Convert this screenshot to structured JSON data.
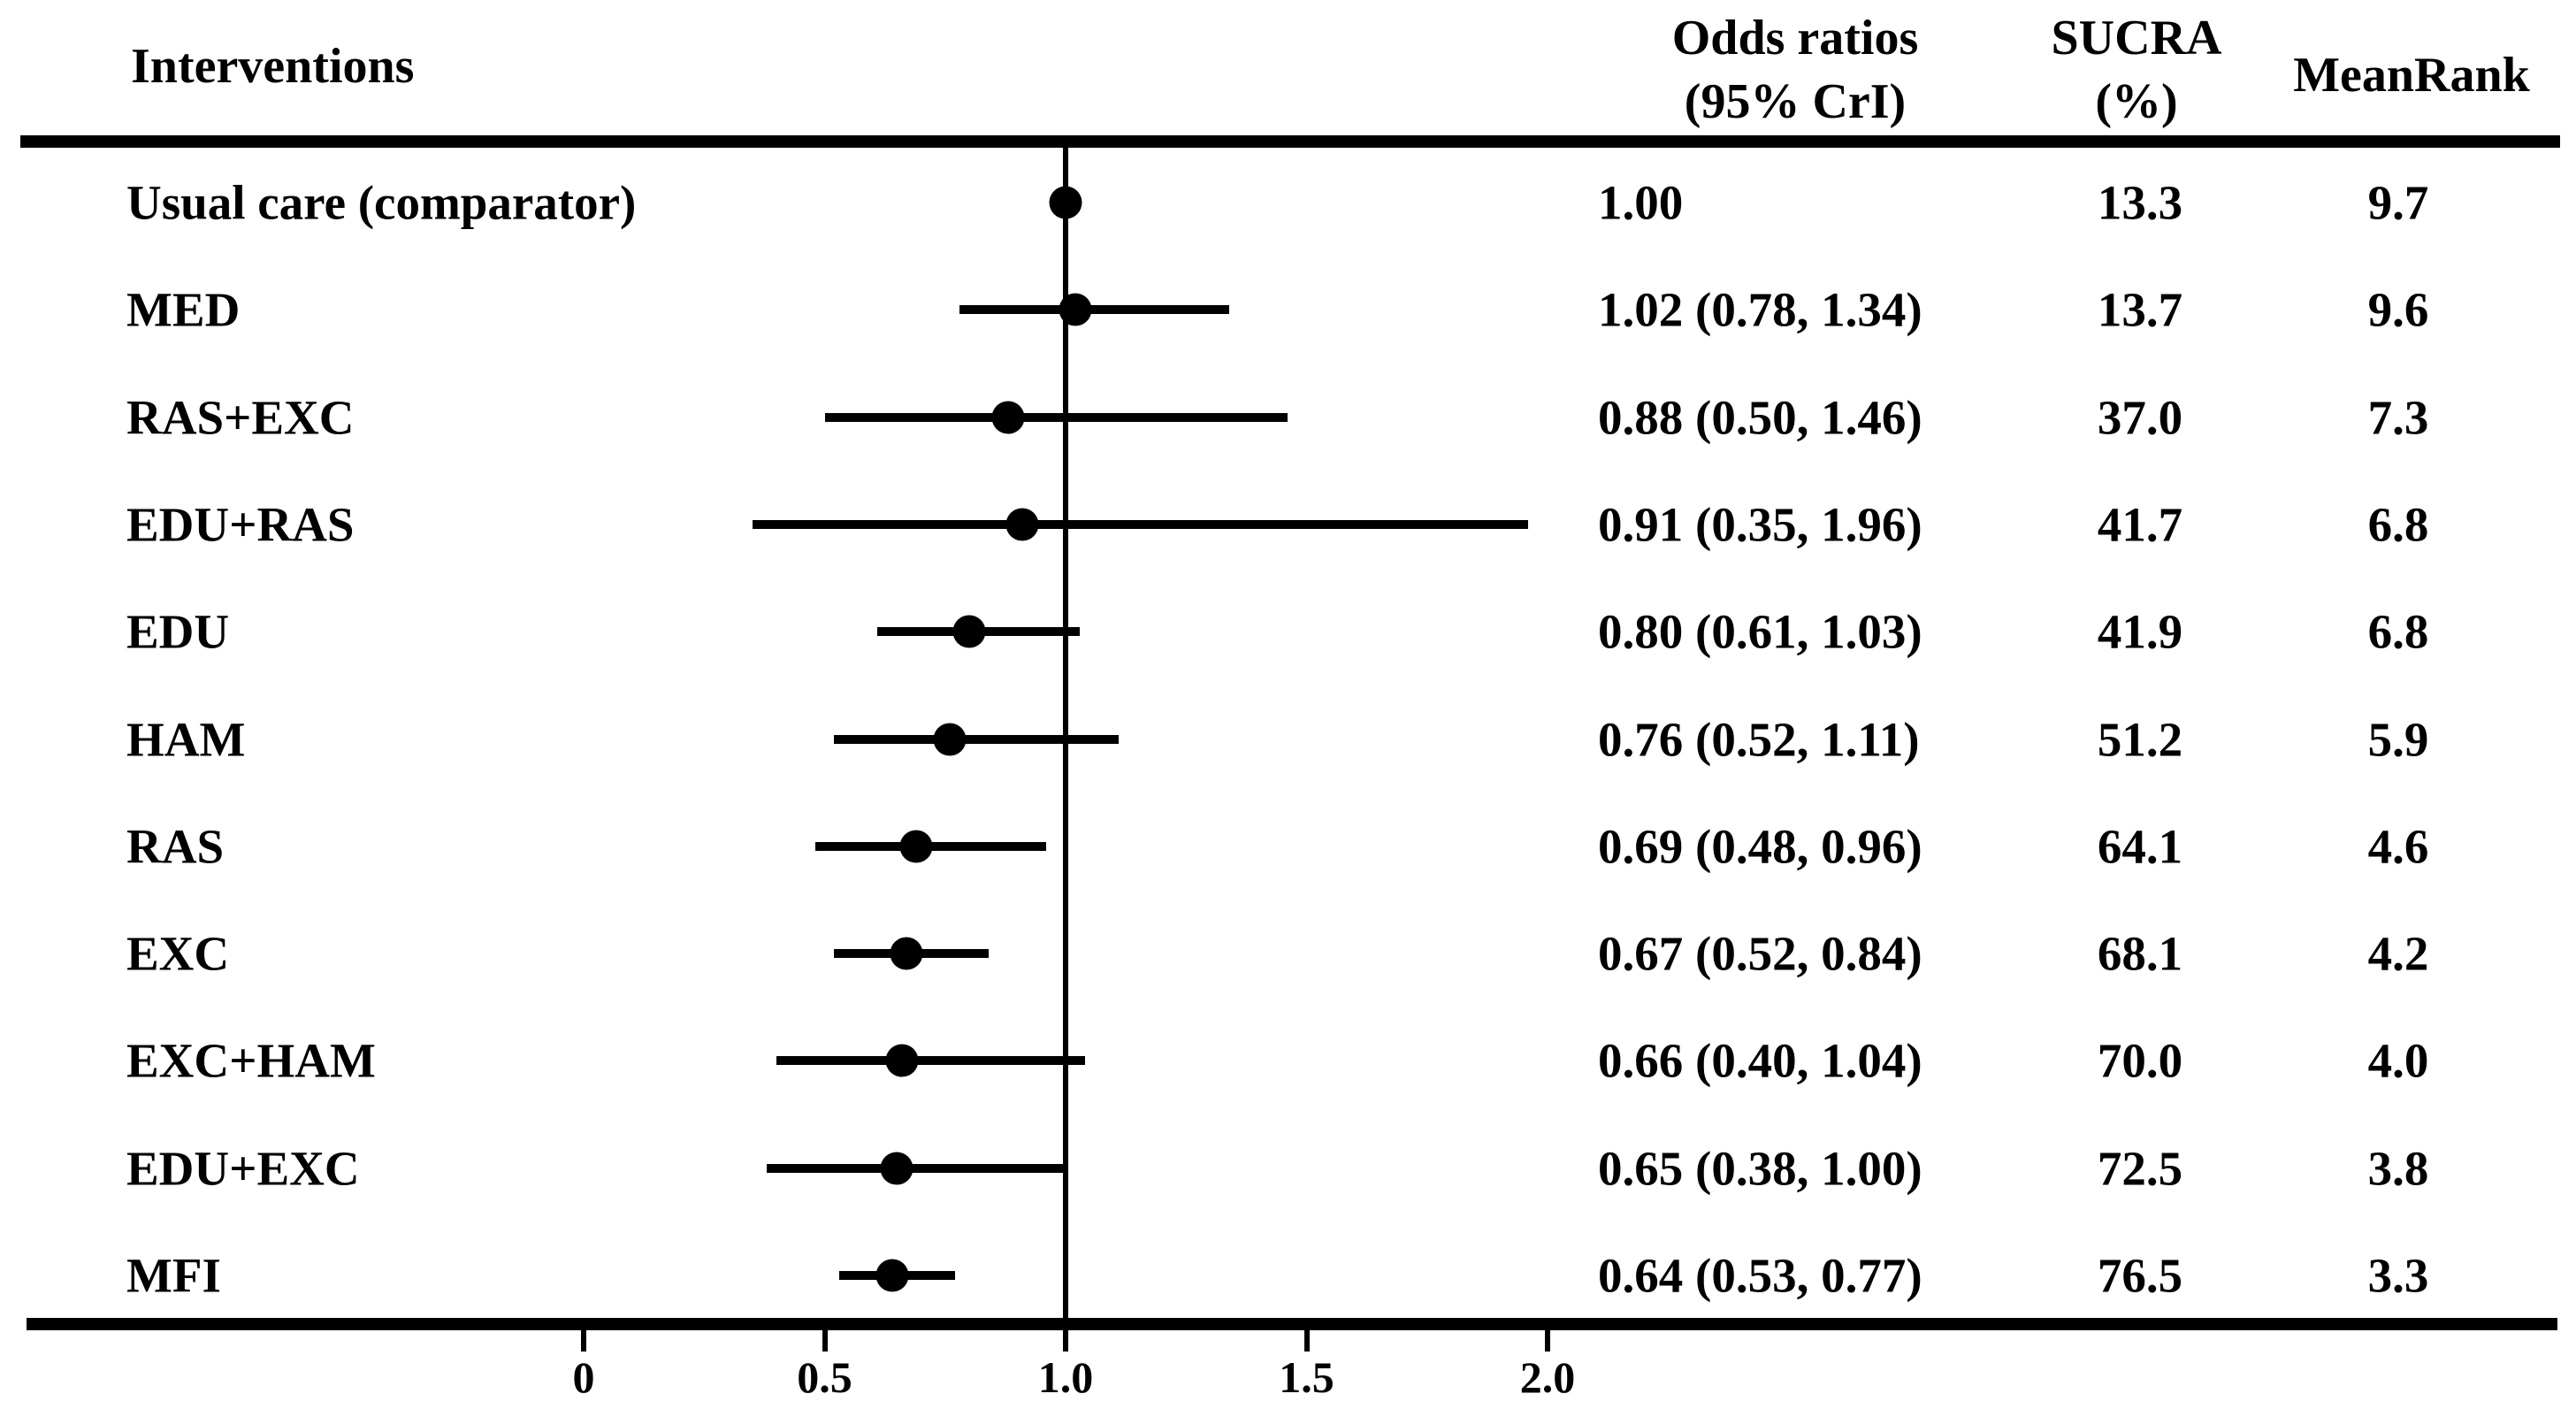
{
  "figure": {
    "headers": {
      "interventions": "Interventions",
      "odds_line1": "Odds ratios",
      "odds_line2": "(95% CrI)",
      "sucra_line1": "SUCRA",
      "sucra_line2": "(%)",
      "meanrank": "MeanRank"
    }
  },
  "colors": {
    "ink": "#000000",
    "background": "#ffffff"
  },
  "chart_data": {
    "type": "forest",
    "title": "",
    "xlabel": "",
    "x_axis": {
      "range_shown": [
        -0.7,
        2.35
      ],
      "ticks": [
        0,
        0.5,
        1.0,
        1.5,
        2.0
      ],
      "tick_labels": [
        "0",
        "0.5",
        "1.0",
        "1.5",
        "2.0"
      ],
      "reference_line": 1.0,
      "grid": false
    },
    "legend_position": "none",
    "rows": [
      {
        "label": "Usual care (comparator)",
        "or": 1.0,
        "ci_low": null,
        "ci_high": null,
        "or_text": "1.00",
        "sucra": "13.3",
        "meanrank": "9.7"
      },
      {
        "label": "MED",
        "or": 1.02,
        "ci_low": 0.78,
        "ci_high": 1.34,
        "or_text": "1.02 (0.78, 1.34)",
        "sucra": "13.7",
        "meanrank": "9.6"
      },
      {
        "label": "RAS+EXC",
        "or": 0.88,
        "ci_low": 0.5,
        "ci_high": 1.46,
        "or_text": "0.88 (0.50, 1.46)",
        "sucra": "37.0",
        "meanrank": "7.3"
      },
      {
        "label": "EDU+RAS",
        "or": 0.91,
        "ci_low": 0.35,
        "ci_high": 1.96,
        "or_text": "0.91 (0.35, 1.96)",
        "sucra": "41.7",
        "meanrank": "6.8"
      },
      {
        "label": "EDU",
        "or": 0.8,
        "ci_low": 0.61,
        "ci_high": 1.03,
        "or_text": "0.80 (0.61, 1.03)",
        "sucra": "41.9",
        "meanrank": "6.8"
      },
      {
        "label": "HAM",
        "or": 0.76,
        "ci_low": 0.52,
        "ci_high": 1.11,
        "or_text": "0.76 (0.52, 1.11)",
        "sucra": "51.2",
        "meanrank": "5.9"
      },
      {
        "label": "RAS",
        "or": 0.69,
        "ci_low": 0.48,
        "ci_high": 0.96,
        "or_text": "0.69 (0.48, 0.96)",
        "sucra": "64.1",
        "meanrank": "4.6"
      },
      {
        "label": "EXC",
        "or": 0.67,
        "ci_low": 0.52,
        "ci_high": 0.84,
        "or_text": "0.67 (0.52, 0.84)",
        "sucra": "68.1",
        "meanrank": "4.2"
      },
      {
        "label": "EXC+HAM",
        "or": 0.66,
        "ci_low": 0.4,
        "ci_high": 1.04,
        "or_text": "0.66 (0.40, 1.04)",
        "sucra": "70.0",
        "meanrank": "4.0"
      },
      {
        "label": "EDU+EXC",
        "or": 0.65,
        "ci_low": 0.38,
        "ci_high": 1.0,
        "or_text": "0.65 (0.38, 1.00)",
        "sucra": "72.5",
        "meanrank": "3.8"
      },
      {
        "label": "MFI",
        "or": 0.64,
        "ci_low": 0.53,
        "ci_high": 0.77,
        "or_text": "0.64 (0.53, 0.77)",
        "sucra": "76.5",
        "meanrank": "3.3"
      }
    ]
  }
}
